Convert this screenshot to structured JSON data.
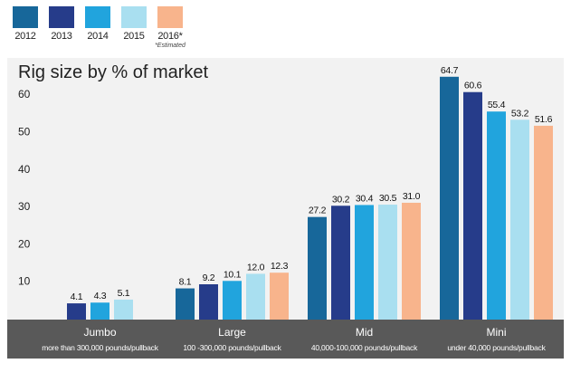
{
  "chart_data": {
    "type": "bar",
    "title": "Rig size by % of market",
    "xlabel": "",
    "ylabel": "",
    "ylim": [
      0,
      70
    ],
    "yticks": [
      10,
      20,
      30,
      40,
      50,
      60
    ],
    "grid": false,
    "legend_position": "top-left",
    "legend_note": "*Estimated",
    "categories": [
      "Jumbo",
      "Large",
      "Mid",
      "Mini"
    ],
    "category_subtitles": [
      "more than 300,000 pounds/pullback",
      "100 -300,000 pounds/pullback",
      "40,000-100,000 pounds/pullback",
      "under 40,000 pounds/pullback"
    ],
    "series": [
      {
        "name": "2012",
        "color": "#17679a",
        "values": [
          null,
          8.1,
          27.2,
          64.7
        ],
        "labels": [
          "",
          "8.1",
          "27.2",
          "64.7"
        ]
      },
      {
        "name": "2013",
        "color": "#263c8a",
        "values": [
          4.1,
          9.2,
          30.2,
          60.6
        ],
        "labels": [
          "4.1",
          "9.2",
          "30.2",
          "60.6"
        ]
      },
      {
        "name": "2014",
        "color": "#21a4dd",
        "values": [
          4.3,
          10.1,
          30.4,
          55.4
        ],
        "labels": [
          "4.3",
          "10.1",
          "30.4",
          "55.4"
        ]
      },
      {
        "name": "2015",
        "color": "#a9dff0",
        "values": [
          5.1,
          12.0,
          30.5,
          53.2
        ],
        "labels": [
          "5.1",
          "12.0",
          "30.5",
          "53.2"
        ]
      },
      {
        "name": "2016*",
        "color": "#f8b48c",
        "values": [
          null,
          12.3,
          31.0,
          51.6
        ],
        "labels": [
          "",
          "12.3",
          "31.0",
          "51.6"
        ]
      }
    ],
    "plot_background": "#f2f2f2",
    "category_band_color": "#595959"
  }
}
